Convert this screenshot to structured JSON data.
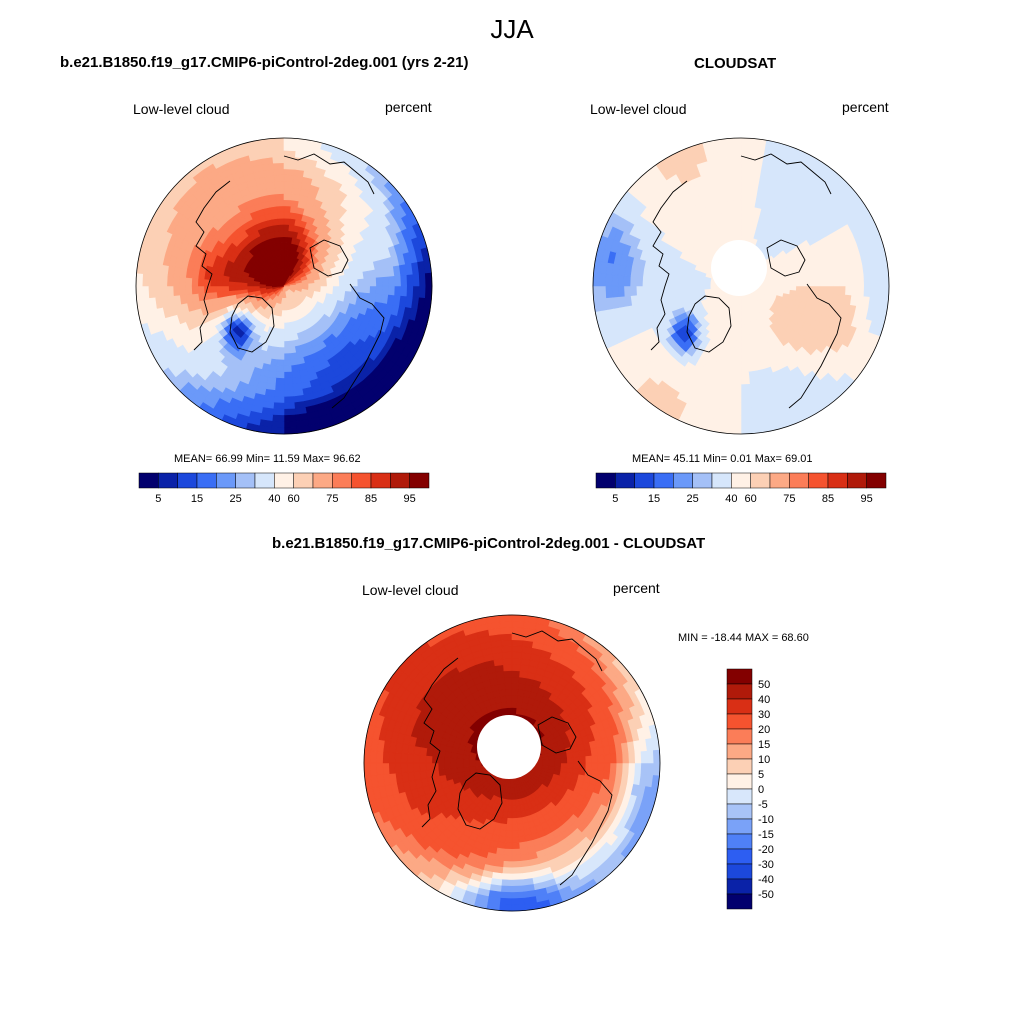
{
  "main_title": "JJA",
  "palette_abs": [
    "#02006e",
    "#0a22a8",
    "#1c48dc",
    "#3a6ef5",
    "#6b99f9",
    "#a4c0f7",
    "#d6e6fb",
    "#fff1e6",
    "#fcd0b5",
    "#fca985",
    "#fb7d58",
    "#f5532f",
    "#d92f15",
    "#b01a0a",
    "#830000"
  ],
  "palette_diff": [
    "#02006e",
    "#0a22a8",
    "#1c48dc",
    "#2d5ef2",
    "#4f80f7",
    "#7aa2f8",
    "#a8c3f7",
    "#d8e7fb",
    "#fff1e6",
    "#fcd0b5",
    "#fca985",
    "#fb7d58",
    "#f5532f",
    "#d92f15",
    "#b01a0a",
    "#830000"
  ],
  "coast_color": "#000000",
  "panels": {
    "model": {
      "title": "b.e21.B1850.f19_g17.CMIP6-piControl-2deg.001 (yrs 2-21)",
      "left_label": "Low-level cloud",
      "right_label": "percent",
      "stats": "MEAN=  66.99  Min=  11.59  Max=  96.62",
      "colorbar_labels": [
        "5",
        "15",
        "25",
        "40",
        "60",
        "75",
        "85",
        "95"
      ]
    },
    "obs": {
      "title": "CLOUDSAT",
      "left_label": "Low-level cloud",
      "right_label": "percent",
      "stats": "MEAN=  45.11  Min=   0.01  Max=  69.01",
      "colorbar_labels": [
        "5",
        "15",
        "25",
        "40",
        "60",
        "75",
        "85",
        "95"
      ]
    },
    "diff": {
      "title": "b.e21.B1850.f19_g17.CMIP6-piControl-2deg.001 - CLOUDSAT",
      "left_label": "Low-level cloud",
      "right_label": "percent",
      "stats": "MIN = -18.44 MAX =  68.60",
      "colorbar_labels": [
        "50",
        "40",
        "30",
        "20",
        "15",
        "10",
        "5",
        "0",
        "-5",
        "-10",
        "-15",
        "-20",
        "-30",
        "-40",
        "-50"
      ]
    }
  },
  "chart_data": [
    {
      "type": "heatmap",
      "projection": "polar stereographic (North Pole)",
      "title": "b.e21.B1850.f19_g17.CMIP6-piControl-2deg.001 (yrs 2-21)",
      "variable": "Low-level cloud",
      "units": "percent",
      "mean": 66.99,
      "min": 11.59,
      "max": 96.62,
      "colorbar_levels": [
        5,
        10,
        15,
        20,
        25,
        30,
        40,
        50,
        60,
        70,
        75,
        80,
        85,
        90,
        95
      ]
    },
    {
      "type": "heatmap",
      "projection": "polar stereographic (North Pole)",
      "title": "CLOUDSAT",
      "variable": "Low-level cloud",
      "units": "percent",
      "mean": 45.11,
      "min": 0.01,
      "max": 69.01,
      "colorbar_levels": [
        5,
        10,
        15,
        20,
        25,
        30,
        40,
        50,
        60,
        70,
        75,
        80,
        85,
        90,
        95
      ]
    },
    {
      "type": "heatmap",
      "projection": "polar stereographic (North Pole)",
      "title": "b.e21.B1850.f19_g17.CMIP6-piControl-2deg.001 - CLOUDSAT",
      "variable": "Low-level cloud",
      "units": "percent",
      "min": -18.44,
      "max": 68.6,
      "colorbar_levels": [
        -50,
        -40,
        -30,
        -20,
        -15,
        -10,
        -5,
        0,
        5,
        10,
        15,
        20,
        30,
        40,
        50
      ]
    }
  ]
}
